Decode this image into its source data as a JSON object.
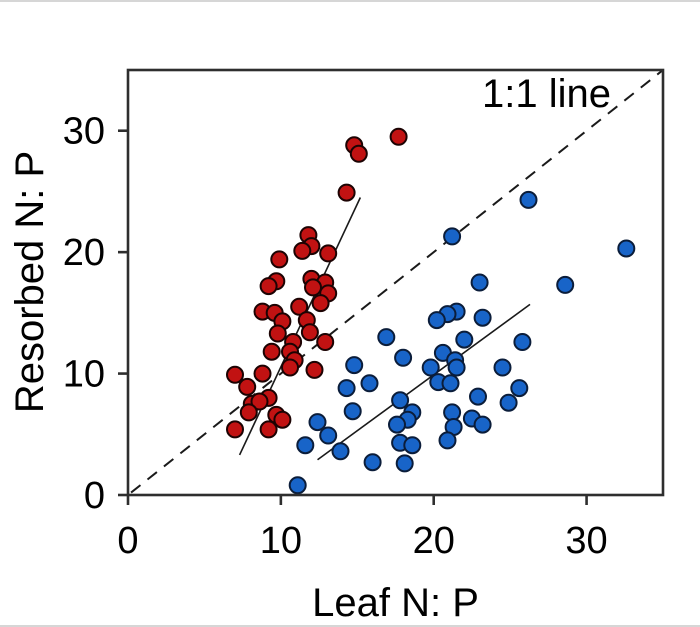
{
  "figure": {
    "background": "#ffffff",
    "frame_color": "#2e2e2e",
    "text_color": "#000000"
  },
  "chart_data": {
    "type": "scatter",
    "title": "",
    "xlabel": "Leaf N: P",
    "ylabel": "Resorbed N: P",
    "xlim": [
      0,
      35
    ],
    "ylim": [
      0,
      35
    ],
    "xticks": [
      0,
      10,
      20,
      30
    ],
    "yticks": [
      0,
      10,
      20,
      30
    ],
    "grid": false,
    "legend": "none",
    "annotations": [
      {
        "text": "1:1 line",
        "position": "top-right"
      }
    ],
    "series": [
      {
        "name": "red",
        "marker": "circle",
        "color": "#c11212",
        "edge_color": "#1c0303",
        "points": [
          [
            17.7,
            29.5
          ],
          [
            14.8,
            28.8
          ],
          [
            15.1,
            28.1
          ],
          [
            14.3,
            24.9
          ],
          [
            11.8,
            21.4
          ],
          [
            12.0,
            20.5
          ],
          [
            11.4,
            20.1
          ],
          [
            13.1,
            19.9
          ],
          [
            9.9,
            19.4
          ],
          [
            12.0,
            17.8
          ],
          [
            12.9,
            17.5
          ],
          [
            9.7,
            17.6
          ],
          [
            9.2,
            17.2
          ],
          [
            12.1,
            17.1
          ],
          [
            13.1,
            16.6
          ],
          [
            12.6,
            15.8
          ],
          [
            11.2,
            15.5
          ],
          [
            8.8,
            15.1
          ],
          [
            9.6,
            15.0
          ],
          [
            11.7,
            14.4
          ],
          [
            10.1,
            14.3
          ],
          [
            9.8,
            13.3
          ],
          [
            11.9,
            13.4
          ],
          [
            12.9,
            12.6
          ],
          [
            10.8,
            12.6
          ],
          [
            10.6,
            11.8
          ],
          [
            9.4,
            11.8
          ],
          [
            10.9,
            11.1
          ],
          [
            10.6,
            10.5
          ],
          [
            12.2,
            10.3
          ],
          [
            7.0,
            9.9
          ],
          [
            8.8,
            10.0
          ],
          [
            7.8,
            8.9
          ],
          [
            9.2,
            8.0
          ],
          [
            8.1,
            7.5
          ],
          [
            8.6,
            7.7
          ],
          [
            7.9,
            6.8
          ],
          [
            9.7,
            6.6
          ],
          [
            10.1,
            6.2
          ],
          [
            7.0,
            5.4
          ],
          [
            9.2,
            5.4
          ]
        ]
      },
      {
        "name": "blue",
        "marker": "circle",
        "color": "#1864c8",
        "edge_color": "#0b1d3a",
        "points": [
          [
            21.2,
            21.3
          ],
          [
            26.2,
            24.3
          ],
          [
            32.6,
            20.3
          ],
          [
            23.0,
            17.5
          ],
          [
            28.6,
            17.3
          ],
          [
            21.5,
            15.1
          ],
          [
            20.9,
            14.9
          ],
          [
            20.2,
            14.4
          ],
          [
            23.2,
            14.6
          ],
          [
            22.0,
            12.8
          ],
          [
            20.6,
            11.7
          ],
          [
            21.4,
            11.1
          ],
          [
            21.5,
            10.5
          ],
          [
            19.8,
            10.5
          ],
          [
            18.0,
            11.3
          ],
          [
            20.3,
            9.3
          ],
          [
            21.1,
            9.2
          ],
          [
            25.8,
            12.6
          ],
          [
            24.5,
            10.5
          ],
          [
            25.6,
            8.8
          ],
          [
            22.9,
            8.1
          ],
          [
            24.9,
            7.6
          ],
          [
            18.6,
            6.8
          ],
          [
            21.2,
            6.8
          ],
          [
            22.5,
            6.3
          ],
          [
            21.3,
            5.6
          ],
          [
            23.2,
            5.8
          ],
          [
            20.9,
            4.5
          ],
          [
            17.8,
            4.3
          ],
          [
            18.1,
            2.6
          ],
          [
            16.9,
            13.0
          ],
          [
            14.8,
            10.7
          ],
          [
            15.8,
            9.2
          ],
          [
            14.3,
            8.8
          ],
          [
            17.8,
            7.8
          ],
          [
            14.7,
            6.9
          ],
          [
            12.4,
            6.0
          ],
          [
            18.3,
            6.2
          ],
          [
            13.1,
            4.9
          ],
          [
            11.6,
            4.1
          ],
          [
            13.9,
            3.6
          ],
          [
            17.6,
            5.8
          ],
          [
            16.0,
            2.7
          ],
          [
            11.1,
            0.8
          ],
          [
            18.6,
            4.1
          ]
        ]
      }
    ],
    "lines": [
      {
        "name": "one-to-one-line",
        "style": "dashed",
        "color": "#1a1a1a",
        "from": [
          0.2,
          0.2
        ],
        "to": [
          35,
          35
        ]
      },
      {
        "name": "red-regression-line",
        "style": "solid",
        "color": "#1a1a1a",
        "from": [
          7.3,
          3.3
        ],
        "to": [
          15.2,
          24.5
        ]
      },
      {
        "name": "blue-regression-line",
        "style": "solid",
        "color": "#1a1a1a",
        "from": [
          12.4,
          2.9
        ],
        "to": [
          26.3,
          15.7
        ]
      }
    ]
  }
}
